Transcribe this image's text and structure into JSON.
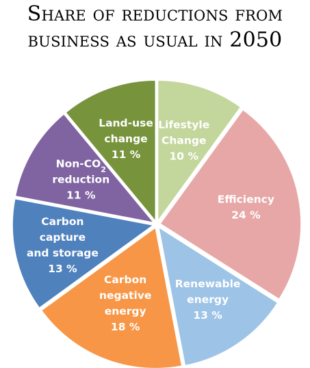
{
  "title_lines": [
    "Share of reductions from",
    "business as usual in 2050"
  ],
  "chart_data": {
    "type": "pie",
    "title": "Share of reductions from business as usual in 2050",
    "slices": [
      {
        "label": "Lifestyle Change",
        "value": 10,
        "value_label": "10 %",
        "lines": [
          "Lifestyle",
          "Change"
        ],
        "color": "#c3d69b"
      },
      {
        "label": "Efficiency",
        "value": 24,
        "value_label": "24 %",
        "lines": [
          "Efficiency"
        ],
        "color": "#e6a7a6"
      },
      {
        "label": "Renewable energy",
        "value": 13,
        "value_label": "13 %",
        "lines": [
          "Renewable",
          "energy"
        ],
        "color": "#9dc3e6"
      },
      {
        "label": "Carbon negative energy",
        "value": 18,
        "value_label": "18 %",
        "lines": [
          "Carbon",
          "negative",
          "energy"
        ],
        "color": "#f79646"
      },
      {
        "label": "Carbon capture and storage",
        "value": 13,
        "value_label": "13 %",
        "lines": [
          "Carbon",
          "capture",
          "and storage"
        ],
        "color": "#4f81bd"
      },
      {
        "label": "Non-CO2 reduction",
        "value": 11,
        "value_label": "11 %",
        "lines": [
          "Non-CO2",
          "reduction"
        ],
        "color": "#8064a2"
      },
      {
        "label": "Land-use change",
        "value": 11,
        "value_label": "11 %",
        "lines": [
          "Land-use",
          "change"
        ],
        "color": "#77933c"
      }
    ]
  }
}
